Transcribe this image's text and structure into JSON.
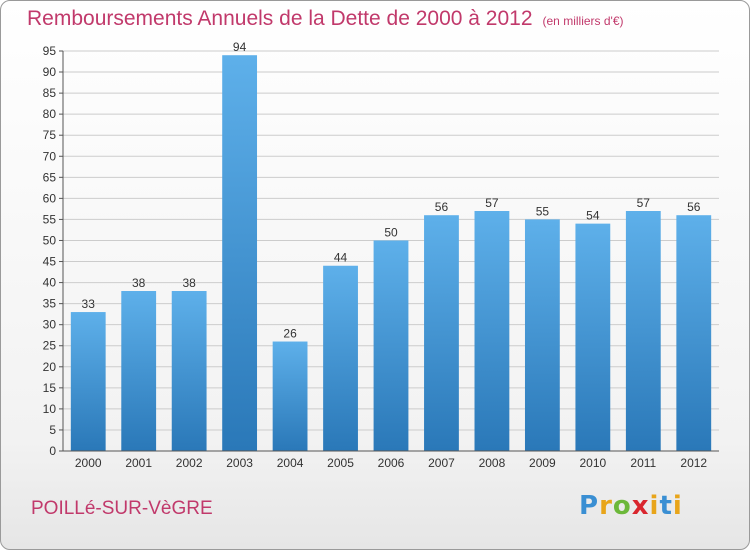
{
  "header": {
    "title": "Remboursements Annuels de la Dette de 2000 à 2012",
    "subtitle": "(en milliers d'€)"
  },
  "footer": {
    "commune": "POILLé-SUR-VèGRE",
    "logo_text": "Proxiti"
  },
  "colors": {
    "title": "#c1396b",
    "bar_top": "#5eb0ea",
    "bar_bottom": "#2a78b8",
    "grid": "#cccccc"
  },
  "chart_data": {
    "type": "bar",
    "title": "Remboursements Annuels de la Dette de 2000 à 2012",
    "subtitle": "(en milliers d'€)",
    "xlabel": "",
    "ylabel": "",
    "ylim": [
      0,
      95
    ],
    "y_tick_step": 5,
    "grid": true,
    "categories": [
      "2000",
      "2001",
      "2002",
      "2003",
      "2004",
      "2005",
      "2006",
      "2007",
      "2008",
      "2009",
      "2010",
      "2011",
      "2012"
    ],
    "values": [
      33,
      38,
      38,
      94,
      26,
      44,
      50,
      56,
      57,
      55,
      54,
      57,
      56
    ]
  }
}
